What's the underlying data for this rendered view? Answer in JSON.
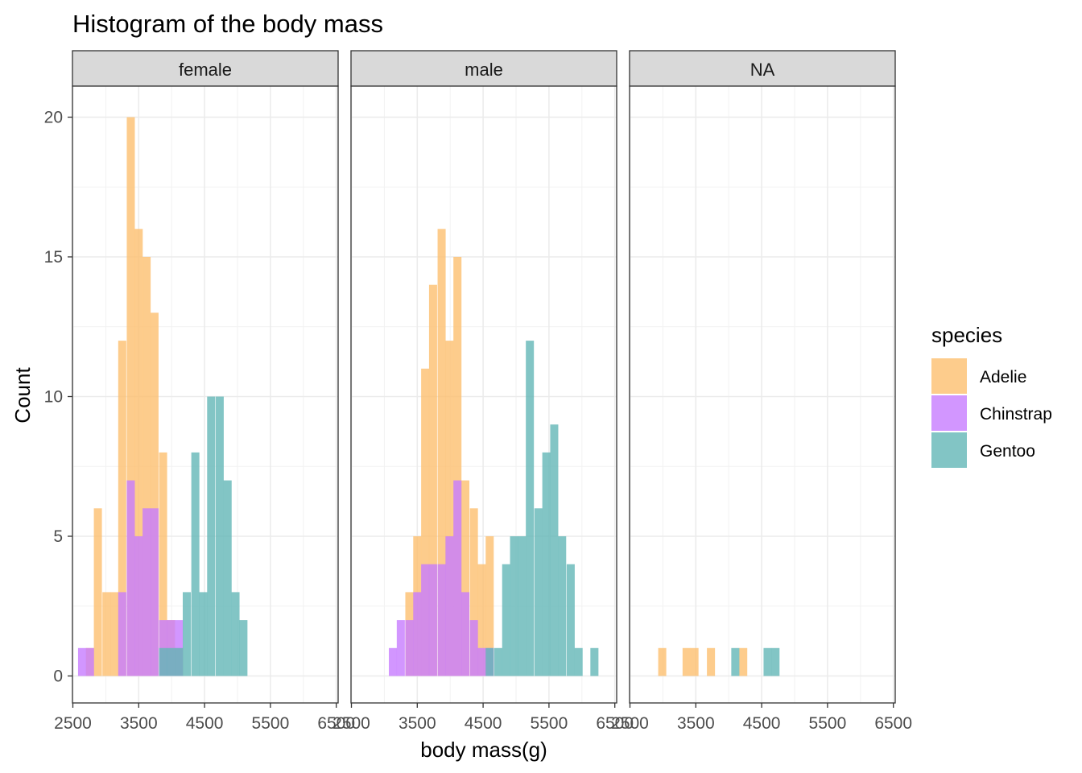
{
  "chart_data": {
    "type": "bar",
    "subtype": "faceted-histogram",
    "title": "Histogram of the body mass",
    "xlabel": "body mass(g)",
    "ylabel": "Count",
    "xlim": [
      2500,
      6500
    ],
    "ylim": [
      0,
      20
    ],
    "x_ticks": [
      2500,
      3500,
      4500,
      5500,
      6500
    ],
    "y_ticks": [
      0,
      5,
      10,
      15,
      20
    ],
    "x_tick_labels": [
      "2500",
      "3500",
      "4500",
      "5500",
      "6500"
    ],
    "y_tick_labels": [
      "0",
      "5",
      "10",
      "15",
      "20"
    ],
    "grid": true,
    "legend": {
      "title": "species",
      "position": "right",
      "entries": [
        {
          "label": "Adelie",
          "color": "#FDBF6F"
        },
        {
          "label": "Chinstrap",
          "color": "#C77CFF"
        },
        {
          "label": "Gentoo",
          "color": "#63B6B6"
        }
      ]
    },
    "bin_width": 122.5,
    "facets": [
      {
        "label": "female",
        "series": [
          {
            "name": "Adelie",
            "bars": [
              {
                "x": 2760,
                "y": 1
              },
              {
                "x": 2880,
                "y": 6
              },
              {
                "x": 3010,
                "y": 3
              },
              {
                "x": 3130,
                "y": 3
              },
              {
                "x": 3250,
                "y": 12
              },
              {
                "x": 3380,
                "y": 20
              },
              {
                "x": 3500,
                "y": 16
              },
              {
                "x": 3620,
                "y": 15
              },
              {
                "x": 3740,
                "y": 13
              },
              {
                "x": 3870,
                "y": 8
              },
              {
                "x": 3990,
                "y": 2
              },
              {
                "x": 4110,
                "y": 1
              }
            ]
          },
          {
            "name": "Chinstrap",
            "bars": [
              {
                "x": 2640,
                "y": 1
              },
              {
                "x": 2760,
                "y": 1
              },
              {
                "x": 3250,
                "y": 3
              },
              {
                "x": 3380,
                "y": 7
              },
              {
                "x": 3500,
                "y": 5
              },
              {
                "x": 3620,
                "y": 6
              },
              {
                "x": 3740,
                "y": 6
              },
              {
                "x": 3870,
                "y": 2
              },
              {
                "x": 3990,
                "y": 2
              },
              {
                "x": 4110,
                "y": 2
              }
            ]
          },
          {
            "name": "Gentoo",
            "bars": [
              {
                "x": 3870,
                "y": 1
              },
              {
                "x": 3990,
                "y": 1
              },
              {
                "x": 4110,
                "y": 1
              },
              {
                "x": 4230,
                "y": 3
              },
              {
                "x": 4360,
                "y": 8
              },
              {
                "x": 4480,
                "y": 3
              },
              {
                "x": 4600,
                "y": 10
              },
              {
                "x": 4730,
                "y": 10
              },
              {
                "x": 4850,
                "y": 7
              },
              {
                "x": 4970,
                "y": 3
              },
              {
                "x": 5090,
                "y": 2
              }
            ]
          }
        ]
      },
      {
        "label": "male",
        "series": [
          {
            "name": "Adelie",
            "bars": [
              {
                "x": 3380,
                "y": 3
              },
              {
                "x": 3500,
                "y": 5
              },
              {
                "x": 3620,
                "y": 11
              },
              {
                "x": 3740,
                "y": 14
              },
              {
                "x": 3870,
                "y": 16
              },
              {
                "x": 3990,
                "y": 12
              },
              {
                "x": 4110,
                "y": 15
              },
              {
                "x": 4230,
                "y": 7
              },
              {
                "x": 4360,
                "y": 6
              },
              {
                "x": 4480,
                "y": 4
              },
              {
                "x": 4600,
                "y": 5
              }
            ]
          },
          {
            "name": "Chinstrap",
            "bars": [
              {
                "x": 3130,
                "y": 1
              },
              {
                "x": 3250,
                "y": 2
              },
              {
                "x": 3380,
                "y": 2
              },
              {
                "x": 3500,
                "y": 3
              },
              {
                "x": 3620,
                "y": 4
              },
              {
                "x": 3740,
                "y": 4
              },
              {
                "x": 3870,
                "y": 4
              },
              {
                "x": 3990,
                "y": 5
              },
              {
                "x": 4110,
                "y": 7
              },
              {
                "x": 4230,
                "y": 3
              },
              {
                "x": 4360,
                "y": 2
              },
              {
                "x": 4480,
                "y": 1
              },
              {
                "x": 4600,
                "y": 1
              }
            ]
          },
          {
            "name": "Gentoo",
            "bars": [
              {
                "x": 4600,
                "y": 1
              },
              {
                "x": 4730,
                "y": 1
              },
              {
                "x": 4850,
                "y": 4
              },
              {
                "x": 4970,
                "y": 5
              },
              {
                "x": 5090,
                "y": 5
              },
              {
                "x": 5210,
                "y": 12
              },
              {
                "x": 5340,
                "y": 6
              },
              {
                "x": 5460,
                "y": 8
              },
              {
                "x": 5580,
                "y": 9
              },
              {
                "x": 5700,
                "y": 5
              },
              {
                "x": 5830,
                "y": 4
              },
              {
                "x": 5950,
                "y": 1
              },
              {
                "x": 6190,
                "y": 1
              }
            ]
          }
        ]
      },
      {
        "label": "NA",
        "series": [
          {
            "name": "Adelie",
            "bars": [
              {
                "x": 2990,
                "y": 1
              },
              {
                "x": 3360,
                "y": 1
              },
              {
                "x": 3480,
                "y": 1
              },
              {
                "x": 3730,
                "y": 1
              },
              {
                "x": 4220,
                "y": 1
              }
            ]
          },
          {
            "name": "Chinstrap",
            "bars": []
          },
          {
            "name": "Gentoo",
            "bars": [
              {
                "x": 4100,
                "y": 1
              },
              {
                "x": 4590,
                "y": 1
              },
              {
                "x": 4710,
                "y": 1
              }
            ]
          }
        ]
      }
    ]
  }
}
